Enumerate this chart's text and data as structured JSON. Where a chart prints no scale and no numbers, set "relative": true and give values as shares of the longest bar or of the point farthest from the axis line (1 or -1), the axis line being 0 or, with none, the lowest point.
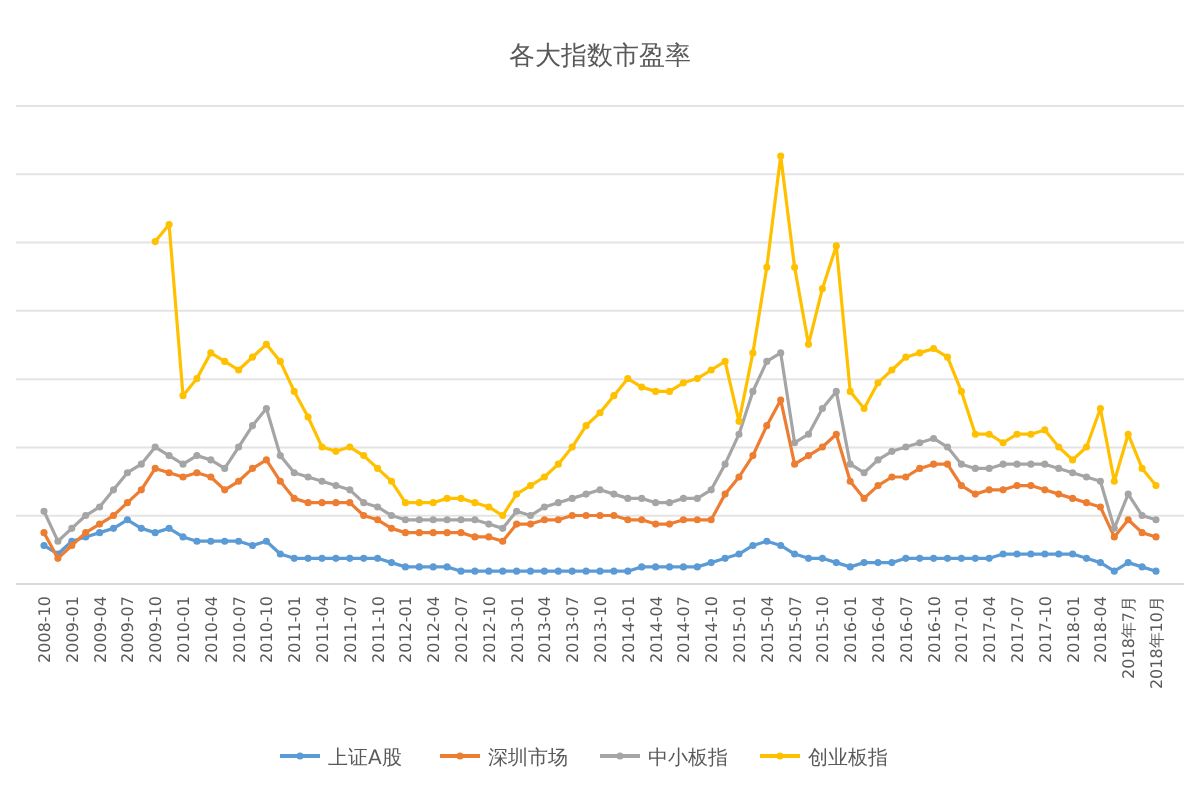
{
  "chart_data": {
    "type": "line",
    "title": "各大指数市盈率",
    "relative": true,
    "grid": "y",
    "legend": "bottom",
    "marker": "circle",
    "line_style": "solid",
    "categories": [
      "2008-10",
      null,
      "2009-01",
      null,
      "2009-04",
      null,
      "2009-07",
      null,
      "2009-10",
      null,
      "2010-01",
      null,
      "2010-04",
      null,
      "2010-07",
      null,
      "2010-10",
      null,
      "2011-01",
      null,
      "2011-04",
      null,
      "2011-07",
      null,
      "2011-10",
      null,
      "2012-01",
      null,
      "2012-04",
      null,
      "2012-07",
      null,
      "2012-10",
      null,
      "2013-01",
      null,
      "2013-04",
      null,
      "2013-07",
      null,
      "2013-10",
      null,
      "2014-01",
      null,
      "2014-04",
      null,
      "2014-07",
      null,
      "2014-10",
      null,
      "2015-01",
      null,
      "2015-04",
      null,
      "2015-07",
      null,
      "2015-10",
      null,
      "2016-01",
      null,
      "2016-04",
      null,
      "2016-07",
      null,
      "2016-10",
      null,
      "2017-01",
      null,
      "2017-04",
      null,
      "2017-07",
      null,
      "2017-10",
      null,
      "2018-01",
      null,
      "2018-04",
      null,
      "2018年7月",
      null,
      "2018年10月"
    ],
    "series": [
      {
        "name": "上证A股",
        "color": "#5b9bd5",
        "values": [
          0.09,
          0.07,
          0.1,
          0.11,
          0.12,
          0.13,
          0.15,
          0.13,
          0.12,
          0.13,
          0.11,
          0.1,
          0.1,
          0.1,
          0.1,
          0.09,
          0.1,
          0.07,
          0.06,
          0.06,
          0.06,
          0.06,
          0.06,
          0.06,
          0.06,
          0.05,
          0.04,
          0.04,
          0.04,
          0.04,
          0.03,
          0.03,
          0.03,
          0.03,
          0.03,
          0.03,
          0.03,
          0.03,
          0.03,
          0.03,
          0.03,
          0.03,
          0.03,
          0.04,
          0.04,
          0.04,
          0.04,
          0.04,
          0.05,
          0.06,
          0.07,
          0.09,
          0.1,
          0.09,
          0.07,
          0.06,
          0.06,
          0.05,
          0.04,
          0.05,
          0.05,
          0.05,
          0.06,
          0.06,
          0.06,
          0.06,
          0.06,
          0.06,
          0.06,
          0.07,
          0.07,
          0.07,
          0.07,
          0.07,
          0.07,
          0.06,
          0.05,
          0.03,
          0.05,
          0.04,
          0.03
        ]
      },
      {
        "name": "深圳市场",
        "color": "#ed7d31",
        "values": [
          0.12,
          0.06,
          0.09,
          0.12,
          0.14,
          0.16,
          0.19,
          0.22,
          0.27,
          0.26,
          0.25,
          0.26,
          0.25,
          0.22,
          0.24,
          0.27,
          0.29,
          0.24,
          0.2,
          0.19,
          0.19,
          0.19,
          0.19,
          0.16,
          0.15,
          0.13,
          0.12,
          0.12,
          0.12,
          0.12,
          0.12,
          0.11,
          0.11,
          0.1,
          0.14,
          0.14,
          0.15,
          0.15,
          0.16,
          0.16,
          0.16,
          0.16,
          0.15,
          0.15,
          0.14,
          0.14,
          0.15,
          0.15,
          0.15,
          0.21,
          0.25,
          0.3,
          0.37,
          0.43,
          0.28,
          0.3,
          0.32,
          0.35,
          0.24,
          0.2,
          0.23,
          0.25,
          0.25,
          0.27,
          0.28,
          0.28,
          0.23,
          0.21,
          0.22,
          0.22,
          0.23,
          0.23,
          0.22,
          0.21,
          0.2,
          0.19,
          0.18,
          0.11,
          0.15,
          0.12,
          0.11
        ]
      },
      {
        "name": "中小板指",
        "color": "#a5a5a5",
        "values": [
          0.17,
          0.1,
          0.13,
          0.16,
          0.18,
          0.22,
          0.26,
          0.28,
          0.32,
          0.3,
          0.28,
          0.3,
          0.29,
          0.27,
          0.32,
          0.37,
          0.41,
          0.3,
          0.26,
          0.25,
          0.24,
          0.23,
          0.22,
          0.19,
          0.18,
          0.16,
          0.15,
          0.15,
          0.15,
          0.15,
          0.15,
          0.15,
          0.14,
          0.13,
          0.17,
          0.16,
          0.18,
          0.19,
          0.2,
          0.21,
          0.22,
          0.21,
          0.2,
          0.2,
          0.19,
          0.19,
          0.2,
          0.2,
          0.22,
          0.28,
          0.35,
          0.45,
          0.52,
          0.54,
          0.33,
          0.35,
          0.41,
          0.45,
          0.28,
          0.26,
          0.29,
          0.31,
          0.32,
          0.33,
          0.34,
          0.32,
          0.28,
          0.27,
          0.27,
          0.28,
          0.28,
          0.28,
          0.28,
          0.27,
          0.26,
          0.25,
          0.24,
          0.13,
          0.21,
          0.16,
          0.15
        ]
      },
      {
        "name": "创业板指",
        "color": "#ffc000",
        "values": [
          null,
          null,
          null,
          null,
          null,
          null,
          null,
          null,
          0.8,
          0.84,
          0.44,
          0.48,
          0.54,
          0.52,
          0.5,
          0.53,
          0.56,
          0.52,
          0.45,
          0.39,
          0.32,
          0.31,
          0.32,
          0.3,
          0.27,
          0.24,
          0.19,
          0.19,
          0.19,
          0.2,
          0.2,
          0.19,
          0.18,
          0.16,
          0.21,
          0.23,
          0.25,
          0.28,
          0.32,
          0.37,
          0.4,
          0.44,
          0.48,
          0.46,
          0.45,
          0.45,
          0.47,
          0.48,
          0.5,
          0.52,
          0.38,
          0.54,
          0.74,
          1,
          0.74,
          0.56,
          0.69,
          0.79,
          0.45,
          0.41,
          0.47,
          0.5,
          0.53,
          0.54,
          0.55,
          0.53,
          0.45,
          0.35,
          0.35,
          0.33,
          0.35,
          0.35,
          0.36,
          0.32,
          0.29,
          0.32,
          0.41,
          0.24,
          0.35,
          0.27,
          0.23
        ]
      }
    ]
  }
}
